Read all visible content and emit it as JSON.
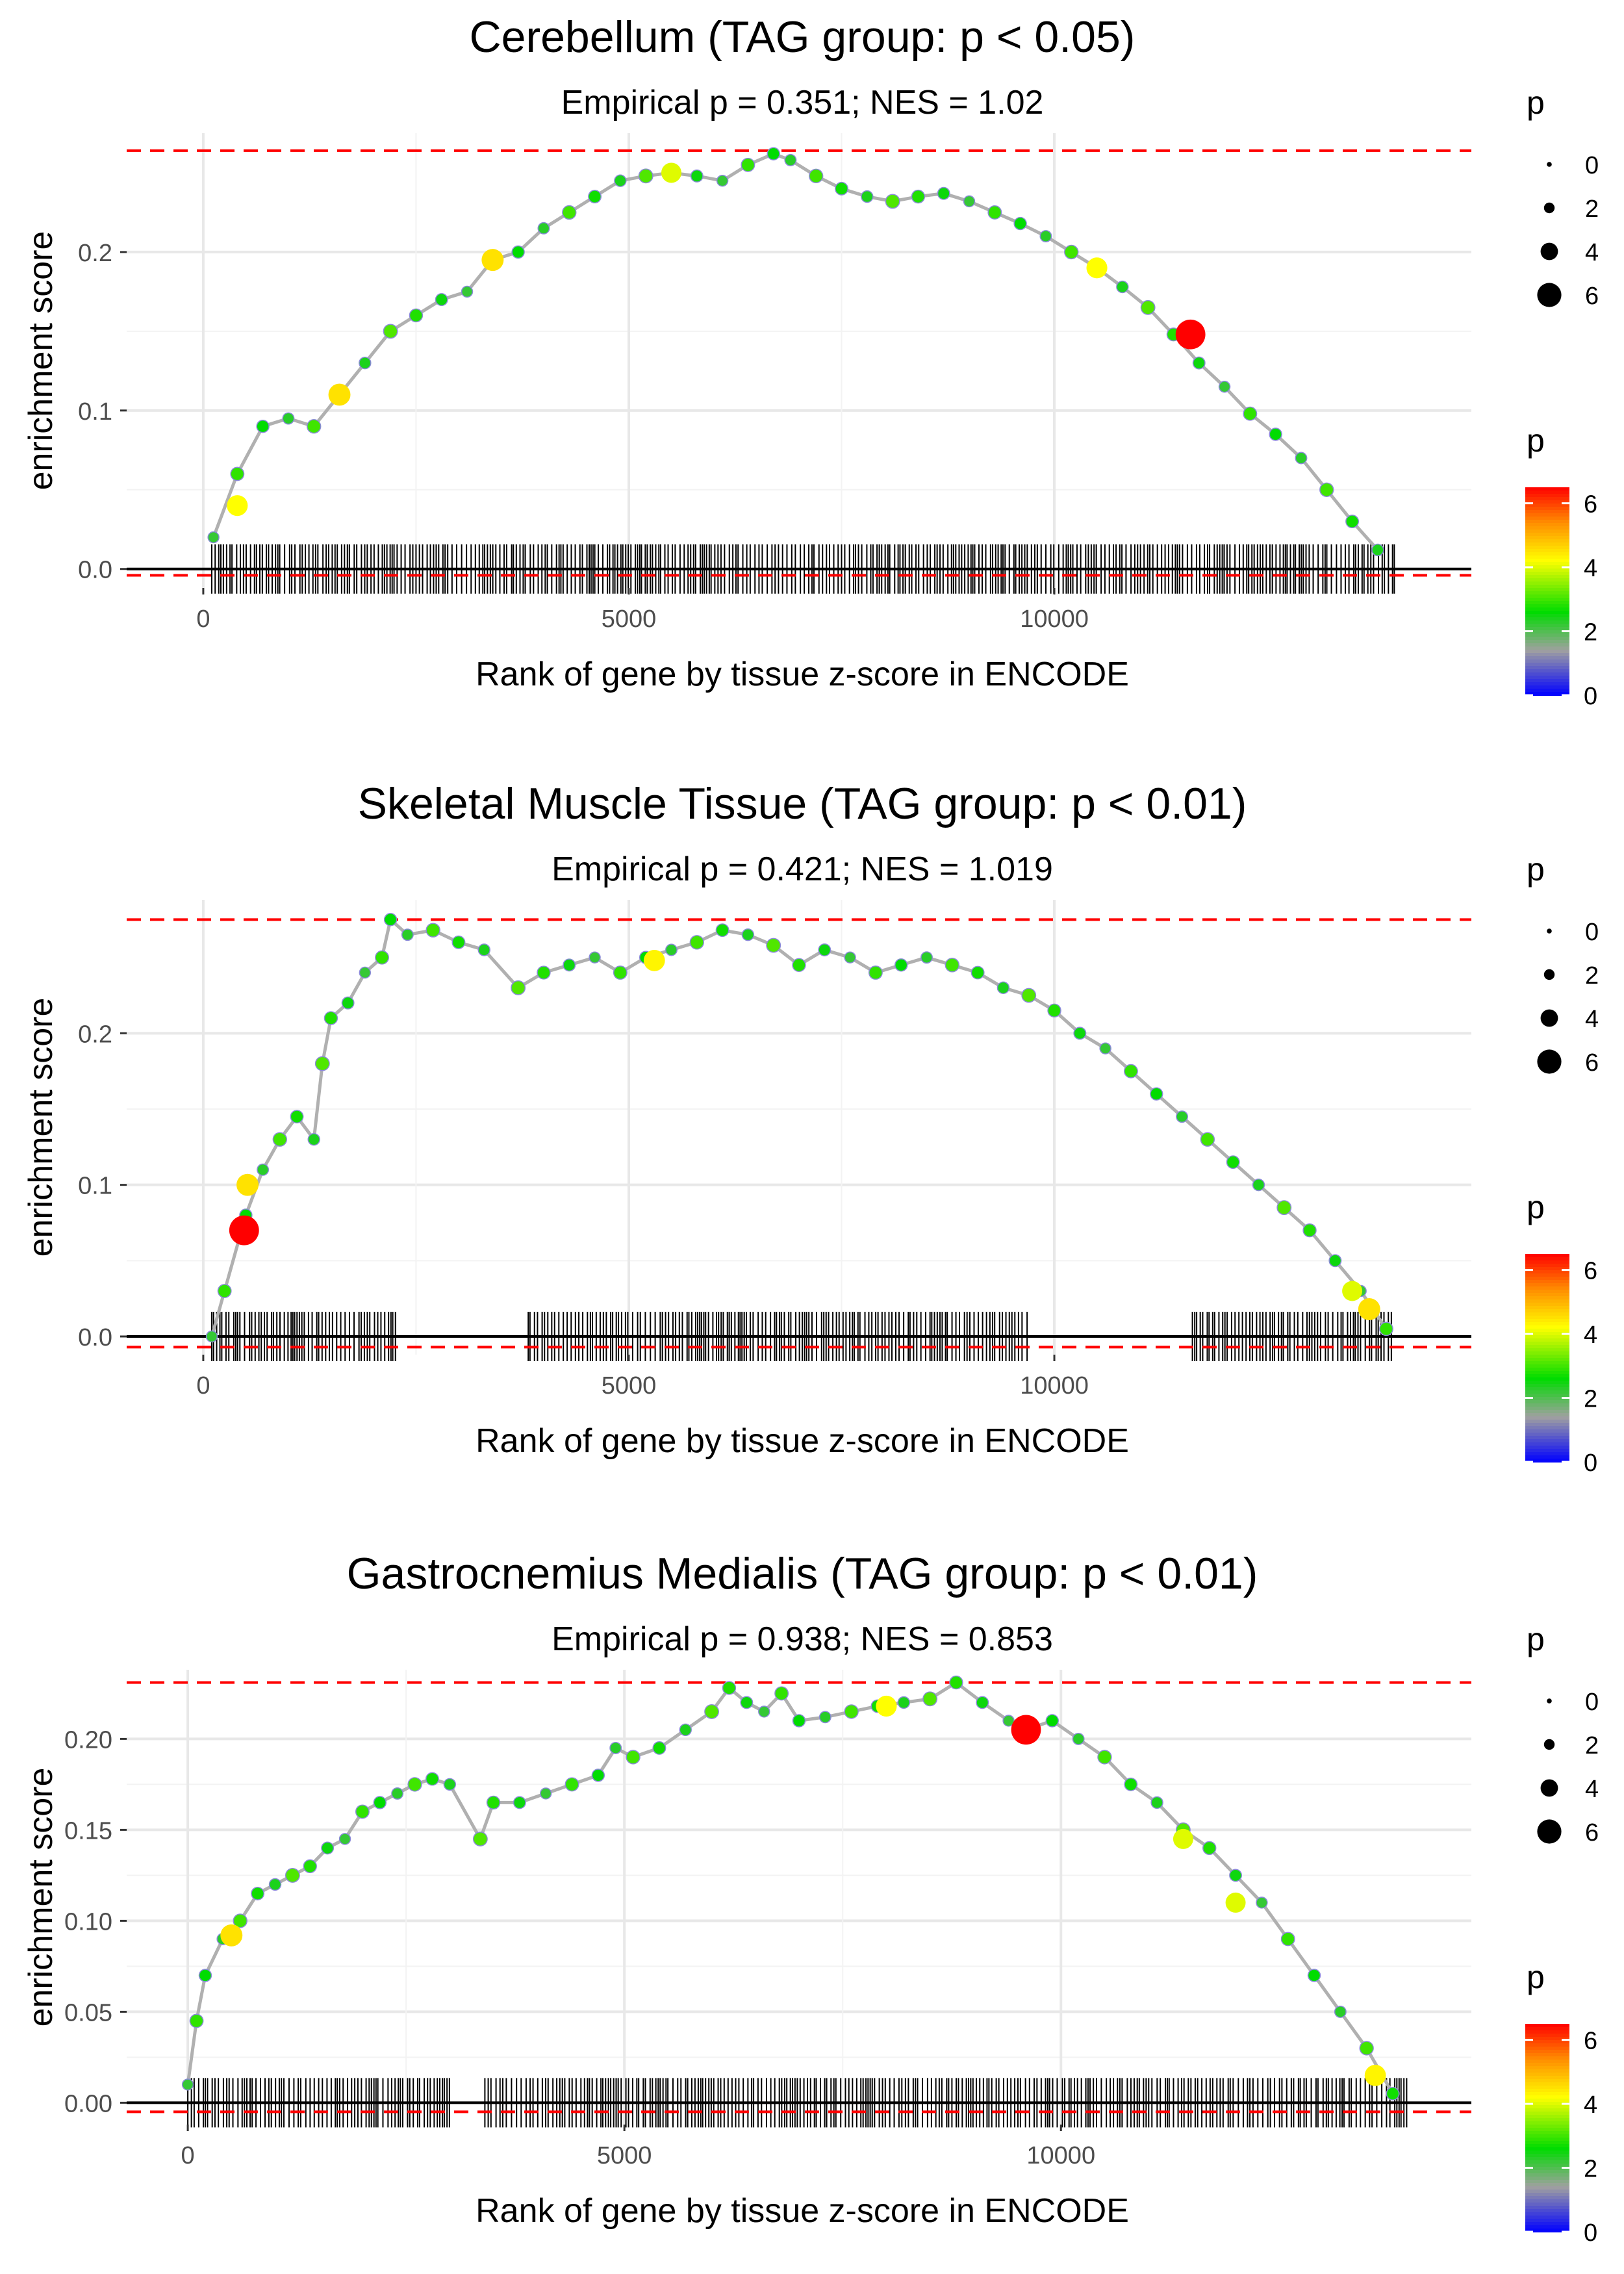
{
  "chart_data": [
    {
      "type": "line",
      "title": "Cerebellum (TAG group: p < 0.05)",
      "subtitle": "Empirical p = 0.351; NES = 1.02",
      "xlabel": "Rank of gene by tissue z-score in ENCODE",
      "ylabel": "enrichment score",
      "xlim": [
        -900,
        14900
      ],
      "ylim": [
        -0.012,
        0.275
      ],
      "x_ticks": [
        0,
        5000,
        10000
      ],
      "x_tick_labels": [
        "0",
        "5000",
        "10000"
      ],
      "y_ticks": [
        0.0,
        0.1,
        0.2
      ],
      "y_tick_labels": [
        "0.0",
        "0.1",
        "0.2"
      ],
      "max_es": 0.264,
      "min_es": -0.004,
      "series": [
        {
          "name": "enrichment score",
          "x": [
            120,
            400,
            700,
            1000,
            1300,
            1600,
            1900,
            2200,
            2500,
            2800,
            3100,
            3400,
            3700,
            4000,
            4300,
            4600,
            4900,
            5200,
            5500,
            5800,
            6100,
            6400,
            6700,
            6900,
            7200,
            7500,
            7800,
            8100,
            8400,
            8700,
            9000,
            9300,
            9600,
            9900,
            10200,
            10500,
            10800,
            11100,
            11400,
            11700,
            12000,
            12300,
            12600,
            12900,
            13200,
            13500,
            13800
          ],
          "values": [
            0.02,
            0.06,
            0.09,
            0.095,
            0.09,
            0.11,
            0.13,
            0.15,
            0.16,
            0.17,
            0.175,
            0.195,
            0.2,
            0.215,
            0.225,
            0.235,
            0.245,
            0.248,
            0.25,
            0.248,
            0.245,
            0.255,
            0.262,
            0.258,
            0.248,
            0.24,
            0.235,
            0.232,
            0.235,
            0.237,
            0.232,
            0.225,
            0.218,
            0.21,
            0.2,
            0.19,
            0.178,
            0.165,
            0.148,
            0.13,
            0.115,
            0.098,
            0.085,
            0.07,
            0.05,
            0.03,
            0.012
          ]
        }
      ],
      "highlight_points": [
        {
          "x": 11600,
          "value": 0.148,
          "p": 6.5
        },
        {
          "x": 10500,
          "value": 0.19,
          "p": 4.2
        },
        {
          "x": 3400,
          "value": 0.195,
          "p": 4.5
        },
        {
          "x": 1600,
          "value": 0.11,
          "p": 4.5
        },
        {
          "x": 5500,
          "value": 0.25,
          "p": 4.0
        },
        {
          "x": 400,
          "value": 0.04,
          "p": 4.2
        }
      ],
      "gene_ticks": {
        "start": 100,
        "end": 14000,
        "gaps": []
      },
      "legend": {
        "size_title": "p",
        "size_labels": [
          "0",
          "2",
          "4",
          "6"
        ],
        "color_title": "p",
        "color_labels": [
          "6",
          "4",
          "2",
          "0"
        ]
      }
    },
    {
      "type": "line",
      "title": "Skeletal Muscle Tissue (TAG group: p < 0.01)",
      "subtitle": "Empirical p = 0.421; NES = 1.019",
      "xlabel": "Rank of gene by tissue z-score in ENCODE",
      "ylabel": "enrichment score",
      "xlim": [
        -900,
        14900
      ],
      "ylim": [
        -0.012,
        0.288
      ],
      "x_ticks": [
        0,
        5000,
        10000
      ],
      "x_tick_labels": [
        "0",
        "5000",
        "10000"
      ],
      "y_ticks": [
        0.0,
        0.1,
        0.2
      ],
      "y_tick_labels": [
        "0.0",
        "0.1",
        "0.2"
      ],
      "max_es": 0.275,
      "min_es": -0.007,
      "series": [
        {
          "name": "enrichment score",
          "x": [
            100,
            250,
            500,
            700,
            900,
            1100,
            1300,
            1400,
            1500,
            1700,
            1900,
            2100,
            2200,
            2400,
            2700,
            3000,
            3300,
            3700,
            4000,
            4300,
            4600,
            4900,
            5200,
            5500,
            5800,
            6100,
            6400,
            6700,
            7000,
            7300,
            7600,
            7900,
            8200,
            8500,
            8800,
            9100,
            9400,
            9700,
            10000,
            10300,
            10600,
            10900,
            11200,
            11500,
            11800,
            12100,
            12400,
            12700,
            13000,
            13300,
            13600,
            13900
          ],
          "values": [
            0.0,
            0.03,
            0.08,
            0.11,
            0.13,
            0.145,
            0.13,
            0.18,
            0.21,
            0.22,
            0.24,
            0.25,
            0.275,
            0.265,
            0.268,
            0.26,
            0.255,
            0.23,
            0.24,
            0.245,
            0.25,
            0.24,
            0.25,
            0.255,
            0.26,
            0.268,
            0.265,
            0.258,
            0.245,
            0.255,
            0.25,
            0.24,
            0.245,
            0.25,
            0.245,
            0.24,
            0.23,
            0.225,
            0.215,
            0.2,
            0.19,
            0.175,
            0.16,
            0.145,
            0.13,
            0.115,
            0.1,
            0.085,
            0.07,
            0.05,
            0.03,
            0.005
          ]
        }
      ],
      "highlight_points": [
        {
          "x": 480,
          "value": 0.07,
          "p": 6.5
        },
        {
          "x": 520,
          "value": 0.1,
          "p": 4.5
        },
        {
          "x": 5300,
          "value": 0.248,
          "p": 4.3
        },
        {
          "x": 13700,
          "value": 0.018,
          "p": 4.5
        },
        {
          "x": 13500,
          "value": 0.03,
          "p": 4.0
        }
      ],
      "gene_ticks": {
        "start": 100,
        "end": 14000,
        "gaps": [
          [
            2300,
            3800
          ],
          [
            9700,
            11600
          ]
        ]
      },
      "legend": {
        "size_title": "p",
        "size_labels": [
          "0",
          "2",
          "4",
          "6"
        ],
        "color_title": "p",
        "color_labels": [
          "6",
          "4",
          "2",
          "0"
        ]
      }
    },
    {
      "type": "line",
      "title": "Gastrocnemius Medialis (TAG group: p < 0.01)",
      "subtitle": "Empirical p = 0.938; NES = 0.853",
      "xlabel": "Rank of gene by tissue z-score in ENCODE",
      "ylabel": "enrichment score",
      "xlim": [
        -700,
        14700
      ],
      "ylim": [
        -0.012,
        0.238
      ],
      "x_ticks": [
        0,
        5000,
        10000
      ],
      "x_tick_labels": [
        "0",
        "5000",
        "10000"
      ],
      "y_ticks": [
        0.0,
        0.05,
        0.1,
        0.15,
        0.2
      ],
      "y_tick_labels": [
        "0.00",
        "0.05",
        "0.10",
        "0.15",
        "0.20"
      ],
      "max_es": 0.231,
      "min_es": -0.005,
      "series": [
        {
          "name": "enrichment score",
          "x": [
            0,
            100,
            200,
            400,
            600,
            800,
            1000,
            1200,
            1400,
            1600,
            1800,
            2000,
            2200,
            2400,
            2600,
            2800,
            3000,
            3350,
            3500,
            3800,
            4100,
            4400,
            4700,
            4900,
            5100,
            5400,
            5700,
            6000,
            6200,
            6400,
            6600,
            6800,
            7000,
            7300,
            7600,
            7900,
            8200,
            8500,
            8800,
            9100,
            9400,
            9600,
            9900,
            10200,
            10500,
            10800,
            11100,
            11400,
            11700,
            12000,
            12300,
            12600,
            12900,
            13200,
            13500,
            13800
          ],
          "values": [
            0.01,
            0.045,
            0.07,
            0.09,
            0.1,
            0.115,
            0.12,
            0.125,
            0.13,
            0.14,
            0.145,
            0.16,
            0.165,
            0.17,
            0.175,
            0.178,
            0.175,
            0.145,
            0.165,
            0.165,
            0.17,
            0.175,
            0.18,
            0.195,
            0.19,
            0.195,
            0.205,
            0.215,
            0.228,
            0.22,
            0.215,
            0.225,
            0.21,
            0.212,
            0.215,
            0.218,
            0.22,
            0.222,
            0.231,
            0.22,
            0.21,
            0.205,
            0.21,
            0.2,
            0.19,
            0.175,
            0.165,
            0.15,
            0.14,
            0.125,
            0.11,
            0.09,
            0.07,
            0.05,
            0.03,
            0.005
          ]
        }
      ],
      "highlight_points": [
        {
          "x": 9600,
          "value": 0.205,
          "p": 6.5
        },
        {
          "x": 8000,
          "value": 0.218,
          "p": 4.2
        },
        {
          "x": 500,
          "value": 0.092,
          "p": 4.5
        },
        {
          "x": 13600,
          "value": 0.015,
          "p": 4.3
        },
        {
          "x": 11400,
          "value": 0.145,
          "p": 4.0
        },
        {
          "x": 12000,
          "value": 0.11,
          "p": 4.0
        }
      ],
      "gene_ticks": {
        "start": 0,
        "end": 14000,
        "gaps": [
          [
            3000,
            3400
          ]
        ]
      },
      "legend": {
        "size_title": "p",
        "size_labels": [
          "0",
          "2",
          "4",
          "6"
        ],
        "color_title": "p",
        "color_labels": [
          "6",
          "4",
          "2",
          "0"
        ]
      }
    }
  ]
}
